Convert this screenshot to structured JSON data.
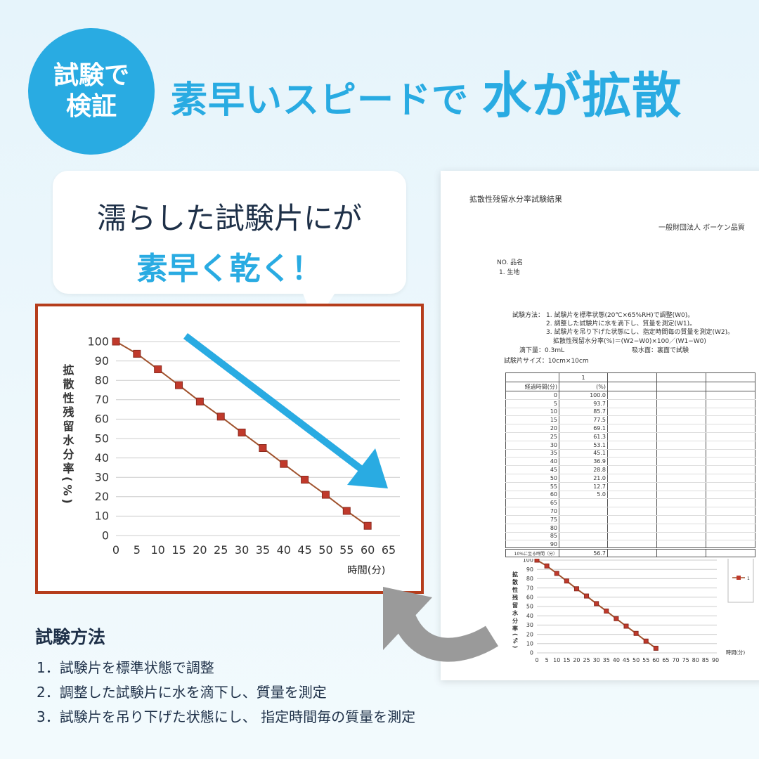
{
  "badge": {
    "line1": "試験で",
    "line2": "検証"
  },
  "headline": {
    "part1": "素早いスピードで",
    "part2": "水が拡散"
  },
  "bubble": {
    "line1": "濡らした試験片にが",
    "line2": "素早く乾く！"
  },
  "colors": {
    "accent": "#29abe2",
    "chart_border": "#b53d1c",
    "series": "#c0392b",
    "line": "#a0522d",
    "arrow_gray": "#9a9a9a"
  },
  "chart_data": [
    {
      "type": "line",
      "ylabel": "拡散性残留水分率(%)",
      "xlabel": "時間(分)",
      "x": [
        0,
        5,
        10,
        15,
        20,
        25,
        30,
        35,
        40,
        45,
        50,
        55,
        60
      ],
      "series": [
        {
          "values": [
            100.0,
            93.7,
            85.7,
            77.5,
            69.1,
            61.3,
            53.1,
            45.1,
            36.9,
            28.8,
            21.0,
            12.7,
            5.0
          ]
        }
      ],
      "xticks": [
        "0",
        "5",
        "10",
        "15",
        "20",
        "25",
        "30",
        "35",
        "40",
        "45",
        "50",
        "55",
        "60",
        "65"
      ],
      "yticks": [
        "0",
        "10",
        "20",
        "30",
        "40",
        "50",
        "60",
        "70",
        "80",
        "90",
        "100"
      ],
      "xlim": [
        0,
        65
      ],
      "ylim": [
        0,
        100
      ],
      "grid": true,
      "legend": "none"
    },
    {
      "type": "line",
      "ylabel": "拡散性残留水分率(%)",
      "xlabel": "時間(分)",
      "x": [
        0,
        5,
        10,
        15,
        20,
        25,
        30,
        35,
        40,
        45,
        50,
        55,
        60
      ],
      "series": [
        {
          "name": "1",
          "values": [
            100.0,
            93.7,
            85.7,
            77.5,
            69.1,
            61.3,
            53.1,
            45.1,
            36.9,
            28.8,
            21.0,
            12.7,
            5.0
          ]
        }
      ],
      "xticks": [
        "0",
        "5",
        "10",
        "15",
        "20",
        "25",
        "30",
        "35",
        "40",
        "45",
        "50",
        "55",
        "60",
        "65",
        "70",
        "75",
        "80",
        "85",
        "90"
      ],
      "yticks": [
        "0",
        "10",
        "20",
        "30",
        "40",
        "50",
        "60",
        "70",
        "80",
        "90",
        "100"
      ],
      "xlim": [
        0,
        90
      ],
      "ylim": [
        0,
        100
      ],
      "grid": true,
      "legend": "right"
    }
  ],
  "document": {
    "title": "拡散性残留水分率試験結果",
    "org": "一般財団法人 ボーケン品質",
    "item_header": "NO. 品名",
    "item": "1. 生地",
    "method_label": "試験方法：",
    "method_lines": [
      "1. 試験片を標準状態(20℃×65%RH)で調整(W0)。",
      "2. 調整した試験片に水を滴下し、質量を測定(W1)。",
      "3. 試験片を吊り下げた状態にし、指定時間毎の質量を測定(W2)。",
      "拡散性残留水分率(%)＝(W2−W0)×100／(W1−W0)"
    ],
    "drop": "滴下量：0.3mL",
    "face": "吸水面：裏面で試験",
    "size": "試験片サイズ：10cm×10cm",
    "table": {
      "col1": "1",
      "time_header": "経過時間(分)",
      "unit_header": "(%)",
      "times": [
        "0",
        "5",
        "10",
        "15",
        "20",
        "25",
        "30",
        "35",
        "40",
        "45",
        "50",
        "55",
        "60",
        "65",
        "70",
        "75",
        "80",
        "85",
        "90"
      ],
      "values": [
        "100.0",
        "93.7",
        "85.7",
        "77.5",
        "69.1",
        "61.3",
        "53.1",
        "45.1",
        "36.9",
        "28.8",
        "21.0",
        "12.7",
        "5.0",
        "",
        "",
        "",
        "",
        "",
        ""
      ],
      "footer_label": "10%に至る時間（分）",
      "footer_value": "56.7"
    }
  },
  "method": {
    "title": "試験方法",
    "steps": [
      "1．試験片を標準状態で調整",
      "2．調整した試験片に水を滴下し、質量を測定",
      "3．試験片を吊り下げた状態にし、 指定時間毎の質量を測定"
    ]
  }
}
